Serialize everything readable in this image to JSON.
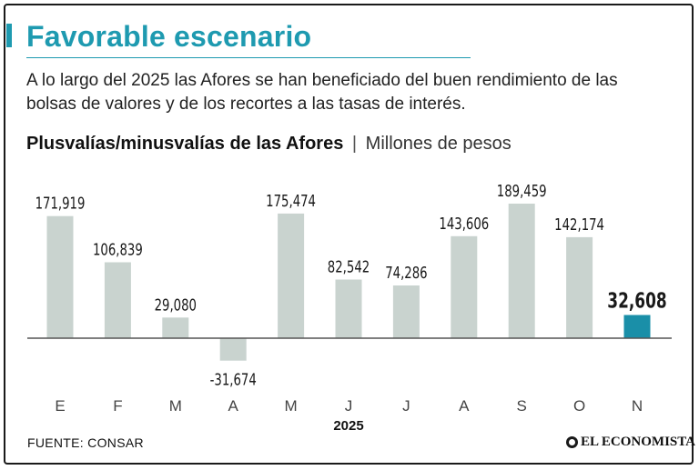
{
  "header": {
    "title": "Favorable escenario",
    "subtitle": "A lo largo del 2025 las Afores se han beneficiado del buen rendimiento de las bolsas de valores y de los recortes a las tasas de interés."
  },
  "chart_heading": {
    "bold": "Plusvalías/minusvalías de las Afores",
    "separator": "|",
    "unit": "Millones de pesos"
  },
  "chart_data": {
    "type": "bar",
    "title": "Plusvalías/minusvalías de las Afores",
    "ylabel": "Millones de pesos",
    "xlabel": "2025",
    "categories": [
      "E",
      "F",
      "M",
      "A",
      "M",
      "J",
      "J",
      "A",
      "S",
      "O",
      "N"
    ],
    "values": [
      171919,
      106839,
      29080,
      -31674,
      175474,
      82542,
      74286,
      143606,
      189459,
      142174,
      32608
    ],
    "labels": [
      "171,919",
      "106,839",
      "29,080",
      "-31,674",
      "175,474",
      "82,542",
      "74,286",
      "143,606",
      "189,459",
      "142,174",
      "32,608"
    ],
    "highlight_index": 10,
    "colors": {
      "bar": "#c9d3cf",
      "highlight": "#1a8fa8",
      "axis": "#555555"
    }
  },
  "footer": {
    "source": "FUENTE: CONSAR",
    "logo": "EL ECONOMISTA"
  },
  "colors": {
    "accent": "#1e9ab0"
  }
}
